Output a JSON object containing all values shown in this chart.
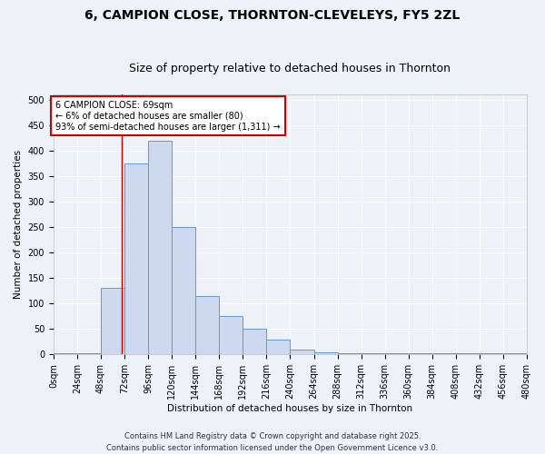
{
  "title": "6, CAMPION CLOSE, THORNTON-CLEVELEYS, FY5 2ZL",
  "subtitle": "Size of property relative to detached houses in Thornton",
  "xlabel": "Distribution of detached houses by size in Thornton",
  "ylabel": "Number of detached properties",
  "bar_color": "#ccd9ee",
  "bar_edge_color": "#6699cc",
  "background_color": "#edf1f8",
  "grid_color": "#ffffff",
  "red_line_x": 69,
  "annotation_text": "6 CAMPION CLOSE: 69sqm\n← 6% of detached houses are smaller (80)\n93% of semi-detached houses are larger (1,311) →",
  "bin_edges": [
    0,
    24,
    48,
    72,
    96,
    120,
    144,
    168,
    192,
    216,
    240,
    264,
    288,
    312,
    336,
    360,
    384,
    408,
    432,
    456,
    480
  ],
  "bar_heights": [
    2,
    2,
    130,
    375,
    420,
    250,
    115,
    75,
    50,
    30,
    10,
    5,
    2,
    2,
    2,
    2,
    2,
    2,
    2,
    2
  ],
  "ylim": [
    0,
    510
  ],
  "yticks": [
    0,
    50,
    100,
    150,
    200,
    250,
    300,
    350,
    400,
    450,
    500
  ],
  "footer_text": "Contains HM Land Registry data © Crown copyright and database right 2025.\nContains public sector information licensed under the Open Government Licence v3.0.",
  "annotation_box_color": "#ffffff",
  "annotation_box_edge": "#cc0000",
  "title_fontsize": 10,
  "subtitle_fontsize": 9,
  "axis_label_fontsize": 7.5,
  "tick_fontsize": 7,
  "footer_fontsize": 6
}
